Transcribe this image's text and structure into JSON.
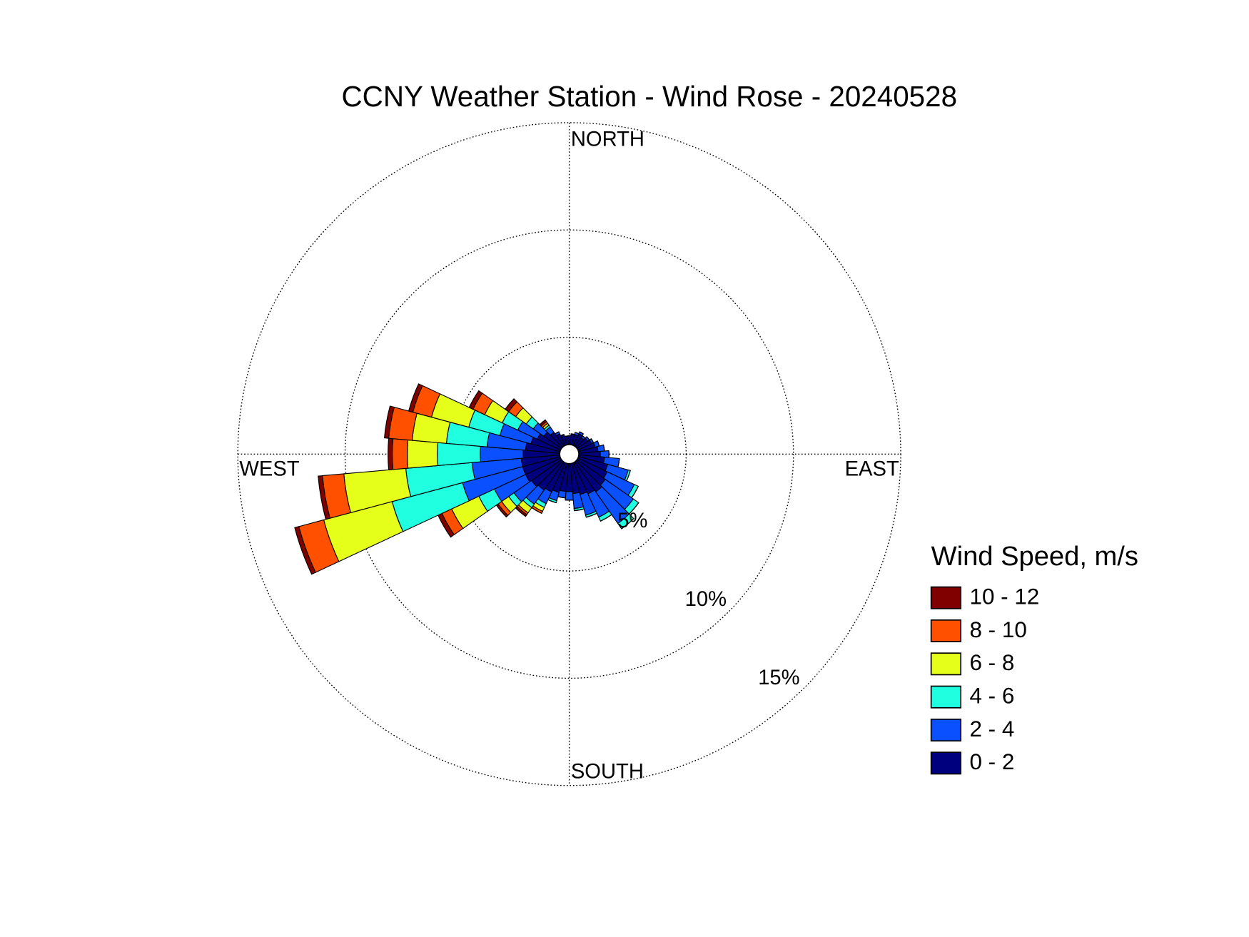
{
  "chart_data": {
    "type": "windrose",
    "title": "CCNY Weather Station - Wind Rose - 20240528",
    "legend_title": "Wind Speed, m/s",
    "direction_labels": [
      "NORTH",
      "EAST",
      "SOUTH",
      "WEST"
    ],
    "x": [
      0,
      10,
      20,
      30,
      40,
      50,
      60,
      70,
      80,
      90,
      100,
      110,
      120,
      130,
      140,
      150,
      160,
      170,
      180,
      190,
      200,
      210,
      220,
      230,
      240,
      250,
      260,
      270,
      280,
      290,
      300,
      310,
      320,
      330,
      340,
      350
    ],
    "rlim": [
      0,
      15
    ],
    "rticks": [
      {
        "value": 5,
        "label": "5%"
      },
      {
        "value": 10,
        "label": "10%"
      },
      {
        "value": 15,
        "label": "15%"
      }
    ],
    "grid": true,
    "series": [
      {
        "name": "0 - 2",
        "color": "#00007f",
        "values": [
          0.4,
          0.5,
          0.5,
          0.6,
          0.5,
          0.6,
          0.7,
          0.8,
          0.9,
          1.0,
          1.2,
          1.4,
          1.5,
          1.6,
          1.7,
          1.6,
          1.5,
          1.4,
          1.3,
          1.3,
          1.4,
          1.5,
          1.6,
          1.7,
          1.8,
          1.8,
          1.8,
          1.7,
          1.6,
          1.4,
          1.2,
          1.0,
          0.8,
          0.6,
          0.5,
          0.4
        ]
      },
      {
        "name": "2 - 4",
        "color": "#0a50ff",
        "values": [
          0,
          0,
          0.1,
          0.1,
          0.1,
          0.1,
          0.1,
          0.2,
          0.3,
          0.4,
          0.7,
          1.0,
          1.4,
          1.6,
          1.8,
          1.2,
          1.0,
          0.7,
          0.4,
          0.3,
          0.4,
          0.6,
          0.8,
          1.0,
          1.6,
          2.9,
          2.3,
          2.0,
          1.8,
          1.5,
          1.0,
          0.6,
          0.3,
          0.1,
          0,
          0
        ]
      },
      {
        "name": "4 - 6",
        "color": "#20ffe0",
        "values": [
          0,
          0,
          0,
          0,
          0,
          0,
          0,
          0,
          0,
          0,
          0,
          0.1,
          0.2,
          0.3,
          0.3,
          0.2,
          0.1,
          0.1,
          0,
          0,
          0.1,
          0.2,
          0.2,
          0.3,
          0.8,
          3.4,
          3.1,
          2.0,
          1.9,
          1.5,
          0.8,
          0.4,
          0.1,
          0,
          0,
          0
        ]
      },
      {
        "name": "6 - 8",
        "color": "#e5ff1a",
        "values": [
          0,
          0,
          0,
          0,
          0,
          0,
          0,
          0,
          0,
          0,
          0,
          0,
          0,
          0,
          0,
          0,
          0,
          0,
          0,
          0,
          0,
          0.2,
          0.3,
          0.4,
          1.4,
          3.3,
          2.9,
          1.4,
          1.6,
          1.8,
          0.9,
          0.6,
          0.1,
          0,
          0,
          0
        ]
      },
      {
        "name": "8 - 10",
        "color": "#ff5000",
        "values": [
          0,
          0,
          0,
          0,
          0,
          0,
          0,
          0,
          0,
          0,
          0,
          0,
          0,
          0,
          0,
          0,
          0,
          0,
          0,
          0,
          0,
          0.1,
          0.1,
          0.2,
          0.5,
          1.2,
          1.0,
          0.7,
          1.1,
          0.9,
          0.6,
          0.4,
          0.1,
          0,
          0,
          0
        ]
      },
      {
        "name": "10 - 12",
        "color": "#800000",
        "values": [
          0,
          0,
          0,
          0,
          0,
          0,
          0,
          0,
          0,
          0,
          0,
          0,
          0,
          0,
          0,
          0,
          0,
          0,
          0,
          0,
          0,
          0,
          0.1,
          0.1,
          0.2,
          0.2,
          0.2,
          0.2,
          0.2,
          0.2,
          0.2,
          0.2,
          0.1,
          0,
          0,
          0
        ]
      }
    ]
  }
}
